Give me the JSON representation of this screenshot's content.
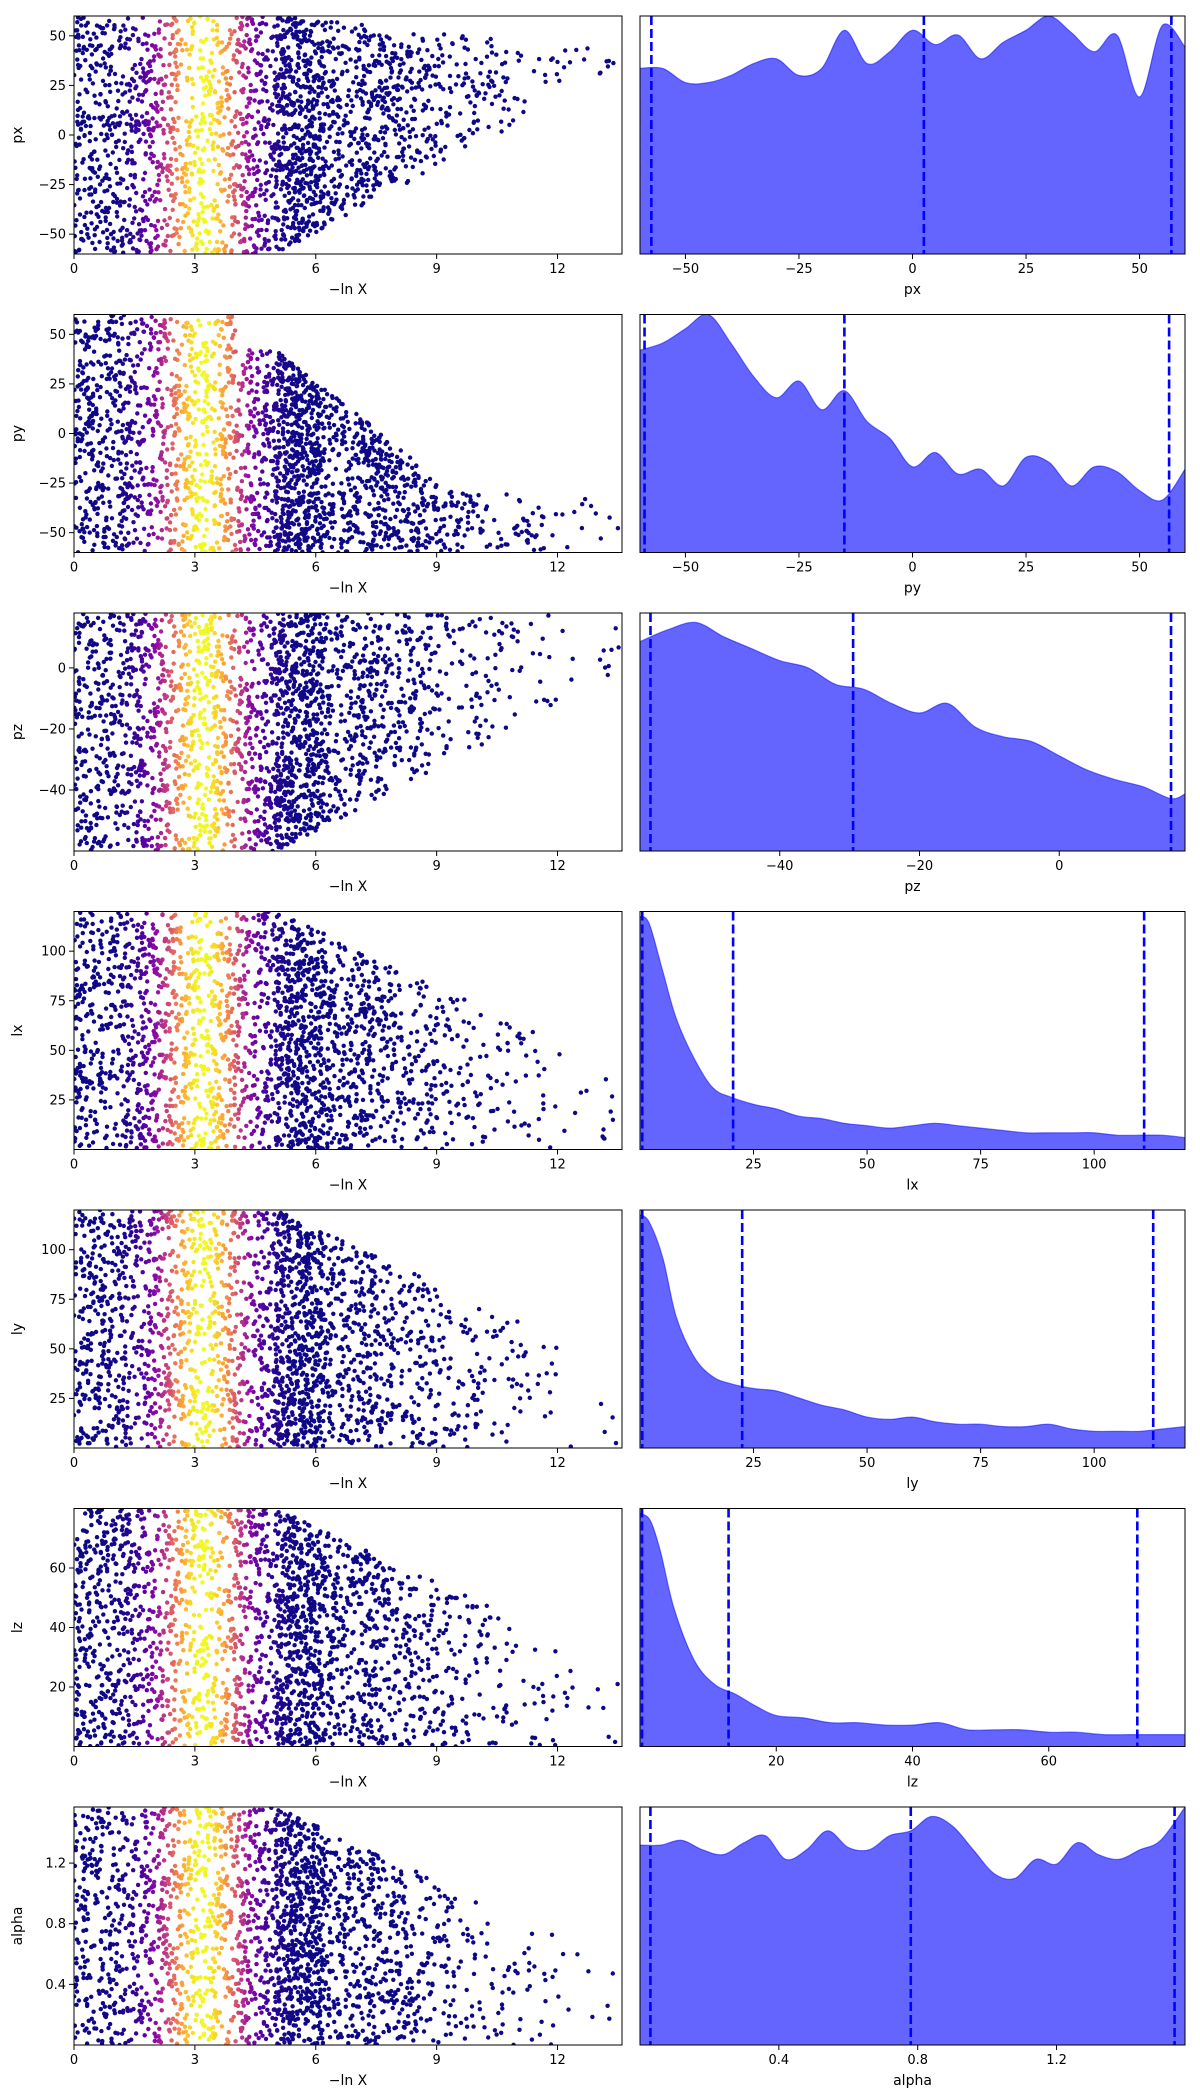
{
  "chart_data": [
    {
      "type": "scatter",
      "xlabel": "−ln X",
      "ylabel": "px",
      "xlim": [
        0,
        13.6
      ],
      "ylim": [
        -60,
        60
      ],
      "xticks": [
        0,
        3,
        6,
        9,
        12
      ],
      "yticks": [
        -50,
        -25,
        0,
        25,
        50
      ],
      "colormap": "plasma",
      "color_peak_x": 3.2
    },
    {
      "type": "area",
      "xlabel": "px",
      "xlim": [
        -60,
        60
      ],
      "ylim": [
        0,
        1
      ],
      "xticks": [
        -50,
        -25,
        0,
        25,
        50
      ],
      "fill_color": "#6464ff",
      "line_color": "#0000ff",
      "quantile_lines": [
        -57.5,
        2.5,
        57
      ],
      "x": [
        -60,
        -55,
        -50,
        -45,
        -40,
        -35,
        -30,
        -25,
        -20,
        -15,
        -10,
        -5,
        0,
        5,
        10,
        15,
        20,
        25,
        30,
        35,
        40,
        45,
        50,
        55,
        60
      ],
      "y": [
        0.78,
        0.78,
        0.72,
        0.72,
        0.75,
        0.8,
        0.82,
        0.75,
        0.78,
        0.94,
        0.8,
        0.85,
        0.94,
        0.88,
        0.92,
        0.82,
        0.89,
        0.94,
        1.0,
        0.93,
        0.85,
        0.92,
        0.66,
        0.96,
        0.87
      ]
    },
    {
      "type": "scatter",
      "xlabel": "−ln X",
      "ylabel": "py",
      "xlim": [
        0,
        13.6
      ],
      "ylim": [
        -60,
        60
      ],
      "xticks": [
        0,
        3,
        6,
        9,
        12
      ],
      "yticks": [
        -50,
        -25,
        0,
        25,
        50
      ],
      "colormap": "plasma",
      "color_peak_x": 3.2
    },
    {
      "type": "area",
      "xlabel": "py",
      "xlim": [
        -60,
        60
      ],
      "ylim": [
        0,
        1
      ],
      "xticks": [
        -50,
        -25,
        0,
        25,
        50
      ],
      "fill_color": "#6464ff",
      "line_color": "#0000ff",
      "quantile_lines": [
        -59,
        -15,
        56.5
      ],
      "x": [
        -60,
        -55,
        -50,
        -45,
        -40,
        -35,
        -30,
        -25,
        -20,
        -15,
        -10,
        -5,
        0,
        5,
        10,
        15,
        20,
        25,
        30,
        35,
        40,
        45,
        50,
        55,
        60
      ],
      "y": [
        0.85,
        0.88,
        0.94,
        1.0,
        0.88,
        0.74,
        0.65,
        0.72,
        0.6,
        0.68,
        0.55,
        0.48,
        0.36,
        0.42,
        0.33,
        0.35,
        0.28,
        0.4,
        0.38,
        0.28,
        0.36,
        0.34,
        0.26,
        0.22,
        0.35
      ]
    },
    {
      "type": "scatter",
      "xlabel": "−ln X",
      "ylabel": "pz",
      "xlim": [
        0,
        13.6
      ],
      "ylim": [
        -60,
        18
      ],
      "xticks": [
        0,
        3,
        6,
        9,
        12
      ],
      "yticks": [
        -40,
        -20,
        0
      ],
      "colormap": "plasma",
      "color_peak_x": 3.2
    },
    {
      "type": "area",
      "xlabel": "pz",
      "xlim": [
        -60,
        18
      ],
      "ylim": [
        0,
        1
      ],
      "xticks": [
        -40,
        -20,
        0
      ],
      "fill_color": "#6464ff",
      "line_color": "#0000ff",
      "quantile_lines": [
        -58.5,
        -29.5,
        16
      ],
      "x": [
        -60,
        -56,
        -52,
        -48,
        -44,
        -40,
        -36,
        -32,
        -28,
        -24,
        -20,
        -16,
        -12,
        -8,
        -4,
        0,
        4,
        8,
        12,
        16,
        18
      ],
      "y": [
        0.88,
        0.93,
        0.96,
        0.9,
        0.85,
        0.8,
        0.77,
        0.7,
        0.68,
        0.62,
        0.58,
        0.62,
        0.52,
        0.48,
        0.46,
        0.4,
        0.34,
        0.3,
        0.27,
        0.22,
        0.24
      ]
    },
    {
      "type": "scatter",
      "xlabel": "−ln X",
      "ylabel": "lx",
      "xlim": [
        0,
        13.6
      ],
      "ylim": [
        0,
        120
      ],
      "xticks": [
        0,
        3,
        6,
        9,
        12
      ],
      "yticks": [
        25,
        50,
        75,
        100
      ],
      "colormap": "plasma",
      "color_peak_x": 3.2
    },
    {
      "type": "area",
      "xlabel": "lx",
      "xlim": [
        0,
        120
      ],
      "ylim": [
        0,
        1
      ],
      "xticks": [
        25,
        50,
        75,
        100
      ],
      "fill_color": "#6464ff",
      "line_color": "#0000ff",
      "quantile_lines": [
        0.5,
        20.5,
        111
      ],
      "x": [
        0,
        2,
        5,
        8,
        12,
        16,
        20,
        25,
        30,
        35,
        40,
        45,
        50,
        55,
        60,
        65,
        70,
        75,
        80,
        85,
        90,
        95,
        100,
        105,
        110,
        115,
        120
      ],
      "y": [
        0.98,
        0.95,
        0.75,
        0.55,
        0.38,
        0.26,
        0.22,
        0.19,
        0.17,
        0.14,
        0.13,
        0.11,
        0.1,
        0.09,
        0.1,
        0.11,
        0.1,
        0.09,
        0.08,
        0.07,
        0.07,
        0.07,
        0.07,
        0.06,
        0.06,
        0.06,
        0.05
      ]
    },
    {
      "type": "scatter",
      "xlabel": "−ln X",
      "ylabel": "ly",
      "xlim": [
        0,
        13.6
      ],
      "ylim": [
        0,
        120
      ],
      "xticks": [
        0,
        3,
        6,
        9,
        12
      ],
      "yticks": [
        25,
        50,
        75,
        100
      ],
      "colormap": "plasma",
      "color_peak_x": 3.2
    },
    {
      "type": "area",
      "xlabel": "ly",
      "xlim": [
        0,
        120
      ],
      "ylim": [
        0,
        1
      ],
      "xticks": [
        25,
        50,
        75,
        100
      ],
      "fill_color": "#6464ff",
      "line_color": "#0000ff",
      "quantile_lines": [
        0.5,
        22.5,
        113
      ],
      "x": [
        0,
        2,
        5,
        8,
        12,
        16,
        20,
        25,
        30,
        35,
        40,
        45,
        50,
        55,
        60,
        65,
        70,
        75,
        80,
        85,
        90,
        95,
        100,
        105,
        110,
        115,
        120
      ],
      "y": [
        0.98,
        0.95,
        0.8,
        0.55,
        0.38,
        0.3,
        0.27,
        0.25,
        0.24,
        0.21,
        0.18,
        0.16,
        0.13,
        0.12,
        0.13,
        0.11,
        0.1,
        0.1,
        0.09,
        0.09,
        0.1,
        0.08,
        0.07,
        0.07,
        0.07,
        0.08,
        0.09
      ]
    },
    {
      "type": "scatter",
      "xlabel": "−ln X",
      "ylabel": "lz",
      "xlim": [
        0,
        13.6
      ],
      "ylim": [
        0,
        80
      ],
      "xticks": [
        0,
        3,
        6,
        9,
        12
      ],
      "yticks": [
        20,
        40,
        60
      ],
      "colormap": "plasma",
      "color_peak_x": 3.2
    },
    {
      "type": "area",
      "xlabel": "lz",
      "xlim": [
        0,
        80
      ],
      "ylim": [
        0,
        1
      ],
      "xticks": [
        20,
        40,
        60
      ],
      "fill_color": "#6464ff",
      "line_color": "#0000ff",
      "quantile_lines": [
        0.3,
        13,
        73
      ],
      "x": [
        0,
        1.5,
        3,
        5,
        8,
        11,
        14,
        17,
        20,
        24,
        28,
        32,
        36,
        40,
        44,
        48,
        52,
        56,
        60,
        64,
        68,
        72,
        76,
        80
      ],
      "y": [
        0.98,
        0.95,
        0.82,
        0.58,
        0.36,
        0.26,
        0.22,
        0.17,
        0.13,
        0.12,
        0.1,
        0.1,
        0.09,
        0.09,
        0.1,
        0.07,
        0.07,
        0.07,
        0.06,
        0.06,
        0.05,
        0.05,
        0.05,
        0.05
      ]
    },
    {
      "type": "scatter",
      "xlabel": "−ln X",
      "ylabel": "alpha",
      "xlim": [
        0,
        13.6
      ],
      "ylim": [
        0,
        1.57
      ],
      "xticks": [
        0,
        3,
        6,
        9,
        12
      ],
      "yticks": [
        0.4,
        0.8,
        1.2
      ],
      "colormap": "plasma",
      "color_peak_x": 3.2
    },
    {
      "type": "area",
      "xlabel": "alpha",
      "xlim": [
        0,
        1.57
      ],
      "ylim": [
        0,
        1
      ],
      "xticks": [
        0.4,
        0.8,
        1.2
      ],
      "fill_color": "#6464ff",
      "line_color": "#0000ff",
      "quantile_lines": [
        0.03,
        0.78,
        1.54
      ],
      "x": [
        0,
        0.06,
        0.12,
        0.18,
        0.24,
        0.3,
        0.36,
        0.42,
        0.48,
        0.54,
        0.6,
        0.66,
        0.72,
        0.78,
        0.84,
        0.9,
        0.96,
        1.02,
        1.08,
        1.14,
        1.2,
        1.26,
        1.32,
        1.38,
        1.44,
        1.5,
        1.57
      ],
      "y": [
        0.84,
        0.84,
        0.86,
        0.82,
        0.8,
        0.85,
        0.88,
        0.78,
        0.82,
        0.9,
        0.83,
        0.82,
        0.88,
        0.9,
        0.96,
        0.92,
        0.82,
        0.72,
        0.7,
        0.78,
        0.76,
        0.85,
        0.8,
        0.78,
        0.82,
        0.86,
        1.0
      ]
    }
  ]
}
